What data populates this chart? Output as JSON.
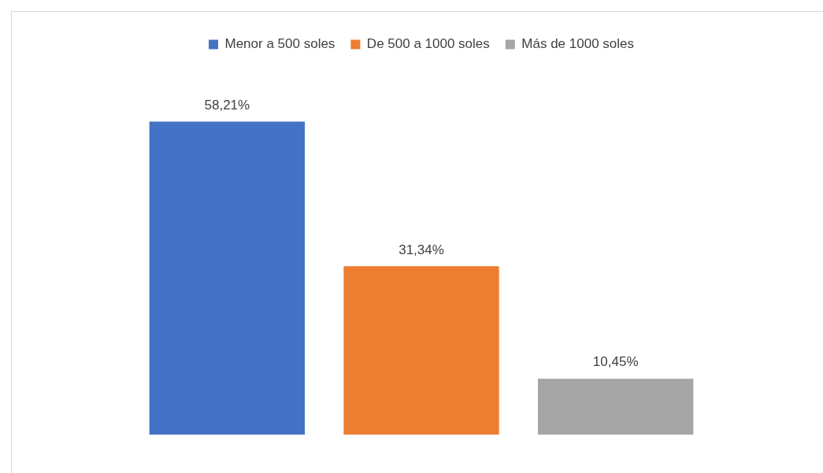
{
  "chart_data": {
    "type": "bar",
    "categories": [
      null
    ],
    "series": [
      {
        "name": "Menor a 500 soles",
        "color": "#4472c4",
        "values": [
          58.21
        ],
        "value_labels": [
          "58,21%"
        ]
      },
      {
        "name": "De 500 a 1000 soles",
        "color": "#ed7d31",
        "values": [
          31.34
        ],
        "value_labels": [
          "31,34%"
        ]
      },
      {
        "name": "Más de 1000 soles",
        "color": "#a5a5a5",
        "values": [
          10.45
        ],
        "value_labels": [
          "10,45%"
        ]
      }
    ],
    "legend": "top"
  }
}
